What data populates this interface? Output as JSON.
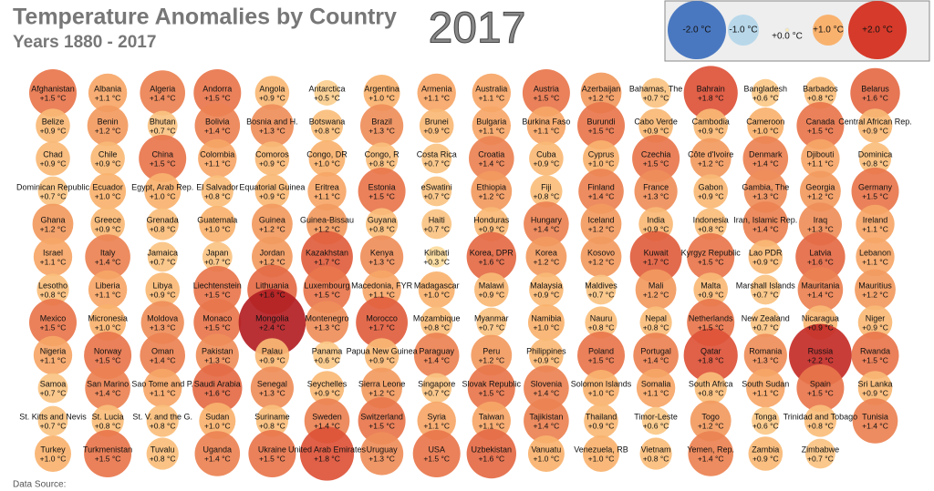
{
  "chart_data": {
    "type": "bubble-grid",
    "title": "Temperature Anomalies by Country",
    "subtitle": "Years 1880 - 2017",
    "year": "2017",
    "source": "Data Source:",
    "legend": [
      {
        "value": -2.0,
        "label": "-2.0 °C"
      },
      {
        "value": -1.0,
        "label": "-1.0 °C"
      },
      {
        "value": 0.0,
        "label": "+0.0 °C"
      },
      {
        "value": 1.0,
        "label": "+1.0 °C"
      },
      {
        "value": 2.0,
        "label": "+2.0 °C"
      }
    ],
    "countries": [
      {
        "name": "Afghanistan",
        "value": 1.5,
        "label": "+1.5 °C"
      },
      {
        "name": "Albania",
        "value": 1.1,
        "label": "+1.1 °C"
      },
      {
        "name": "Algeria",
        "value": 1.4,
        "label": "+1.4 °C"
      },
      {
        "name": "Andorra",
        "value": 1.5,
        "label": "+1.5 °C"
      },
      {
        "name": "Angola",
        "value": 0.9,
        "label": "+0.9 °C"
      },
      {
        "name": "Antarctica",
        "value": 0.5,
        "label": "+0.5 °C"
      },
      {
        "name": "Argentina",
        "value": 1.0,
        "label": "+1.0 °C"
      },
      {
        "name": "Armenia",
        "value": 1.1,
        "label": "+1.1 °C"
      },
      {
        "name": "Australia",
        "value": 1.1,
        "label": "+1.1 °C"
      },
      {
        "name": "Austria",
        "value": 1.5,
        "label": "+1.5 °C"
      },
      {
        "name": "Azerbaijan",
        "value": 1.2,
        "label": "+1.2 °C"
      },
      {
        "name": "Bahamas, The",
        "value": 0.7,
        "label": "+0.7 °C"
      },
      {
        "name": "Bahrain",
        "value": 1.8,
        "label": "+1.8 °C"
      },
      {
        "name": "Bangladesh",
        "value": 0.6,
        "label": "+0.6 °C"
      },
      {
        "name": "Barbados",
        "value": 0.8,
        "label": "+0.8 °C"
      },
      {
        "name": "Belarus",
        "value": 1.6,
        "label": "+1.6 °C"
      },
      {
        "name": "Belize",
        "value": 0.9,
        "label": "+0.9 °C"
      },
      {
        "name": "Benin",
        "value": 1.2,
        "label": "+1.2 °C"
      },
      {
        "name": "Bhutan",
        "value": 0.7,
        "label": "+0.7 °C"
      },
      {
        "name": "Bolivia",
        "value": 1.4,
        "label": "+1.4 °C"
      },
      {
        "name": "Bosnia and H.",
        "value": 1.3,
        "label": "+1.3 °C"
      },
      {
        "name": "Botswana",
        "value": 0.8,
        "label": "+0.8 °C"
      },
      {
        "name": "Brazil",
        "value": 1.3,
        "label": "+1.3 °C"
      },
      {
        "name": "Brunei",
        "value": 0.9,
        "label": "+0.9 °C"
      },
      {
        "name": "Bulgaria",
        "value": 1.1,
        "label": "+1.1 °C"
      },
      {
        "name": "Burkina Faso",
        "value": 1.1,
        "label": "+1.1 °C"
      },
      {
        "name": "Burundi",
        "value": 1.5,
        "label": "+1.5 °C"
      },
      {
        "name": "Cabo Verde",
        "value": 0.9,
        "label": "+0.9 °C"
      },
      {
        "name": "Cambodia",
        "value": 0.9,
        "label": "+0.9 °C"
      },
      {
        "name": "Cameroon",
        "value": 1.0,
        "label": "+1.0 °C"
      },
      {
        "name": "Canada",
        "value": 1.5,
        "label": "+1.5 °C"
      },
      {
        "name": "Central African Rep.",
        "value": 0.9,
        "label": "+0.9 °C"
      },
      {
        "name": "Chad",
        "value": 0.9,
        "label": "+0.9 °C"
      },
      {
        "name": "Chile",
        "value": 0.9,
        "label": "+0.9 °C"
      },
      {
        "name": "China",
        "value": 1.5,
        "label": "+1.5 °C"
      },
      {
        "name": "Colombia",
        "value": 1.1,
        "label": "+1.1 °C"
      },
      {
        "name": "Comoros",
        "value": 0.9,
        "label": "+0.9 °C"
      },
      {
        "name": "Congo, DR",
        "value": 1.0,
        "label": "+1.0 °C"
      },
      {
        "name": "Congo, R",
        "value": 0.8,
        "label": "+0.8 °C"
      },
      {
        "name": "Costa Rica",
        "value": 0.7,
        "label": "+0.7 °C"
      },
      {
        "name": "Croatia",
        "value": 1.4,
        "label": "+1.4 °C"
      },
      {
        "name": "Cuba",
        "value": 0.9,
        "label": "+0.9 °C"
      },
      {
        "name": "Cyprus",
        "value": 1.0,
        "label": "+1.0 °C"
      },
      {
        "name": "Czechia",
        "value": 1.5,
        "label": "+1.5 °C"
      },
      {
        "name": "Côte d'Ivoire",
        "value": 1.2,
        "label": "+1.2 °C"
      },
      {
        "name": "Denmark",
        "value": 1.4,
        "label": "+1.4 °C"
      },
      {
        "name": "Djibouti",
        "value": 1.1,
        "label": "+1.1 °C"
      },
      {
        "name": "Dominica",
        "value": 0.8,
        "label": "+0.8 °C"
      },
      {
        "name": "Dominican Republic",
        "value": 0.7,
        "label": "+0.7 °C"
      },
      {
        "name": "Ecuador",
        "value": 1.0,
        "label": "+1.0 °C"
      },
      {
        "name": "Egypt, Arab Rep.",
        "value": 1.0,
        "label": "+1.0 °C"
      },
      {
        "name": "El Salvador",
        "value": 0.8,
        "label": "+0.8 °C"
      },
      {
        "name": "Equatorial Guinea",
        "value": 0.9,
        "label": "+0.9 °C"
      },
      {
        "name": "Eritrea",
        "value": 1.1,
        "label": "+1.1 °C"
      },
      {
        "name": "Estonia",
        "value": 1.5,
        "label": "+1.5 °C"
      },
      {
        "name": "eSwatini",
        "value": 0.7,
        "label": "+0.7 °C"
      },
      {
        "name": "Ethiopia",
        "value": 1.2,
        "label": "+1.2 °C"
      },
      {
        "name": "Fiji",
        "value": 0.8,
        "label": "+0.8 °C"
      },
      {
        "name": "Finland",
        "value": 1.4,
        "label": "+1.4 °C"
      },
      {
        "name": "France",
        "value": 1.3,
        "label": "+1.3 °C"
      },
      {
        "name": "Gabon",
        "value": 0.9,
        "label": "+0.9 °C"
      },
      {
        "name": "Gambia, The",
        "value": 1.3,
        "label": "+1.3 °C"
      },
      {
        "name": "Georgia",
        "value": 1.2,
        "label": "+1.2 °C"
      },
      {
        "name": "Germany",
        "value": 1.5,
        "label": "+1.5 °C"
      },
      {
        "name": "Ghana",
        "value": 1.2,
        "label": "+1.2 °C"
      },
      {
        "name": "Greece",
        "value": 0.9,
        "label": "+0.9 °C"
      },
      {
        "name": "Grenada",
        "value": 0.8,
        "label": "+0.8 °C"
      },
      {
        "name": "Guatemala",
        "value": 1.0,
        "label": "+1.0 °C"
      },
      {
        "name": "Guinea",
        "value": 1.2,
        "label": "+1.2 °C"
      },
      {
        "name": "Guinea-Bissau",
        "value": 1.2,
        "label": "+1.2 °C"
      },
      {
        "name": "Guyana",
        "value": 0.8,
        "label": "+0.8 °C"
      },
      {
        "name": "Haiti",
        "value": 0.7,
        "label": "+0.7 °C"
      },
      {
        "name": "Honduras",
        "value": 0.9,
        "label": "+0.9 °C"
      },
      {
        "name": "Hungary",
        "value": 1.4,
        "label": "+1.4 °C"
      },
      {
        "name": "Iceland",
        "value": 1.2,
        "label": "+1.2 °C"
      },
      {
        "name": "India",
        "value": 0.9,
        "label": "+0.9 °C"
      },
      {
        "name": "Indonesia",
        "value": 0.8,
        "label": "+0.8 °C"
      },
      {
        "name": "Iran, Islamic Rep.",
        "value": 1.4,
        "label": "+1.4 °C"
      },
      {
        "name": "Iraq",
        "value": 1.3,
        "label": "+1.3 °C"
      },
      {
        "name": "Ireland",
        "value": 1.1,
        "label": "+1.1 °C"
      },
      {
        "name": "Israel",
        "value": 1.1,
        "label": "+1.1 °C"
      },
      {
        "name": "Italy",
        "value": 1.4,
        "label": "+1.4 °C"
      },
      {
        "name": "Jamaica",
        "value": 0.7,
        "label": "+0.7 °C"
      },
      {
        "name": "Japan",
        "value": 0.7,
        "label": "+0.7 °C"
      },
      {
        "name": "Jordan",
        "value": 1.2,
        "label": "+1.2 °C"
      },
      {
        "name": "Kazakhstan",
        "value": 1.7,
        "label": "+1.7 °C"
      },
      {
        "name": "Kenya",
        "value": 1.3,
        "label": "+1.3 °C"
      },
      {
        "name": "Kiribati",
        "value": 0.3,
        "label": "+0.3 °C"
      },
      {
        "name": "Korea, DPR",
        "value": 1.6,
        "label": "+1.6 °C"
      },
      {
        "name": "Korea",
        "value": 1.2,
        "label": "+1.2 °C"
      },
      {
        "name": "Kosovo",
        "value": 1.2,
        "label": "+1.2 °C"
      },
      {
        "name": "Kuwait",
        "value": 1.7,
        "label": "+1.7 °C"
      },
      {
        "name": "Kyrgyz Republic",
        "value": 1.5,
        "label": "+1.5 °C"
      },
      {
        "name": "Lao PDR",
        "value": 0.9,
        "label": "+0.9 °C"
      },
      {
        "name": "Latvia",
        "value": 1.6,
        "label": "+1.6 °C"
      },
      {
        "name": "Lebanon",
        "value": 1.1,
        "label": "+1.1 °C"
      },
      {
        "name": "Lesotho",
        "value": 0.8,
        "label": "+0.8 °C"
      },
      {
        "name": "Liberia",
        "value": 1.1,
        "label": "+1.1 °C"
      },
      {
        "name": "Libya",
        "value": 0.9,
        "label": "+0.9 °C"
      },
      {
        "name": "Liechtenstein",
        "value": 1.5,
        "label": "+1.5 °C"
      },
      {
        "name": "Lithuania",
        "value": 1.6,
        "label": "+1.6 °C"
      },
      {
        "name": "Luxembourg",
        "value": 1.5,
        "label": "+1.5 °C"
      },
      {
        "name": "Macedonia, FYR",
        "value": 1.1,
        "label": "+1.1 °C"
      },
      {
        "name": "Madagascar",
        "value": 1.0,
        "label": "+1.0 °C"
      },
      {
        "name": "Malawi",
        "value": 0.9,
        "label": "+0.9 °C"
      },
      {
        "name": "Malaysia",
        "value": 0.9,
        "label": "+0.9 °C"
      },
      {
        "name": "Maldives",
        "value": 0.7,
        "label": "+0.7 °C"
      },
      {
        "name": "Mali",
        "value": 1.2,
        "label": "+1.2 °C"
      },
      {
        "name": "Malta",
        "value": 0.9,
        "label": "+0.9 °C"
      },
      {
        "name": "Marshall Islands",
        "value": 0.7,
        "label": "+0.7 °C"
      },
      {
        "name": "Mauritania",
        "value": 1.4,
        "label": "+1.4 °C"
      },
      {
        "name": "Mauritius",
        "value": 1.2,
        "label": "+1.2 °C"
      },
      {
        "name": "Mexico",
        "value": 1.5,
        "label": "+1.5 °C"
      },
      {
        "name": "Micronesia",
        "value": 1.0,
        "label": "+1.0 °C"
      },
      {
        "name": "Moldova",
        "value": 1.3,
        "label": "+1.3 °C"
      },
      {
        "name": "Monaco",
        "value": 1.5,
        "label": "+1.5 °C"
      },
      {
        "name": "Mongolia",
        "value": 2.4,
        "label": "+2.4 °C"
      },
      {
        "name": "Montenegro",
        "value": 1.3,
        "label": "+1.3 °C"
      },
      {
        "name": "Morocco",
        "value": 1.7,
        "label": "+1.7 °C"
      },
      {
        "name": "Mozambique",
        "value": 0.8,
        "label": "+0.8 °C"
      },
      {
        "name": "Myanmar",
        "value": 0.7,
        "label": "+0.7 °C"
      },
      {
        "name": "Namibia",
        "value": 1.0,
        "label": "+1.0 °C"
      },
      {
        "name": "Nauru",
        "value": 0.8,
        "label": "+0.8 °C"
      },
      {
        "name": "Nepal",
        "value": 0.8,
        "label": "+0.8 °C"
      },
      {
        "name": "Netherlands",
        "value": 1.5,
        "label": "+1.5 °C"
      },
      {
        "name": "New Zealand",
        "value": 0.7,
        "label": "+0.7 °C"
      },
      {
        "name": "Nicaragua",
        "value": 0.9,
        "label": "+0.9 °C"
      },
      {
        "name": "Niger",
        "value": 0.9,
        "label": "+0.9 °C"
      },
      {
        "name": "Nigeria",
        "value": 1.1,
        "label": "+1.1 °C"
      },
      {
        "name": "Norway",
        "value": 1.5,
        "label": "+1.5 °C"
      },
      {
        "name": "Oman",
        "value": 1.4,
        "label": "+1.4 °C"
      },
      {
        "name": "Pakistan",
        "value": 1.3,
        "label": "+1.3 °C"
      },
      {
        "name": "Palau",
        "value": 0.9,
        "label": "+0.9 °C"
      },
      {
        "name": "Panama",
        "value": 0.6,
        "label": "+0.6 °C"
      },
      {
        "name": "Papua New Guinea",
        "value": 0.9,
        "label": "+0.9 °C"
      },
      {
        "name": "Paraguay",
        "value": 1.4,
        "label": "+1.4 °C"
      },
      {
        "name": "Peru",
        "value": 1.2,
        "label": "+1.2 °C"
      },
      {
        "name": "Philippines",
        "value": 0.9,
        "label": "+0.9 °C"
      },
      {
        "name": "Poland",
        "value": 1.5,
        "label": "+1.5 °C"
      },
      {
        "name": "Portugal",
        "value": 1.4,
        "label": "+1.4 °C"
      },
      {
        "name": "Qatar",
        "value": 1.8,
        "label": "+1.8 °C"
      },
      {
        "name": "Romania",
        "value": 1.3,
        "label": "+1.3 °C"
      },
      {
        "name": "Russia",
        "value": 2.2,
        "label": "+2.2 °C"
      },
      {
        "name": "Rwanda",
        "value": 1.5,
        "label": "+1.5 °C"
      },
      {
        "name": "Samoa",
        "value": 0.7,
        "label": "+0.7 °C"
      },
      {
        "name": "San Marino",
        "value": 1.4,
        "label": "+1.4 °C"
      },
      {
        "name": "Sao Tome and P.",
        "value": 1.1,
        "label": "+1.1 °C"
      },
      {
        "name": "Saudi Arabia",
        "value": 1.6,
        "label": "+1.6 °C"
      },
      {
        "name": "Senegal",
        "value": 1.3,
        "label": "+1.3 °C"
      },
      {
        "name": "Seychelles",
        "value": 0.9,
        "label": "+0.9 °C"
      },
      {
        "name": "Sierra Leone",
        "value": 1.2,
        "label": "+1.2 °C"
      },
      {
        "name": "Singapore",
        "value": 0.7,
        "label": "+0.7 °C"
      },
      {
        "name": "Slovak Republic",
        "value": 1.5,
        "label": "+1.5 °C"
      },
      {
        "name": "Slovenia",
        "value": 1.4,
        "label": "+1.4 °C"
      },
      {
        "name": "Solomon Islands",
        "value": 1.0,
        "label": "+1.0 °C"
      },
      {
        "name": "Somalia",
        "value": 1.1,
        "label": "+1.1 °C"
      },
      {
        "name": "South Africa",
        "value": 0.8,
        "label": "+0.8 °C"
      },
      {
        "name": "South Sudan",
        "value": 1.1,
        "label": "+1.1 °C"
      },
      {
        "name": "Spain",
        "value": 1.5,
        "label": "+1.5 °C"
      },
      {
        "name": "Sri Lanka",
        "value": 0.9,
        "label": "+0.9 °C"
      },
      {
        "name": "St. Kitts and Nevis",
        "value": 0.7,
        "label": "+0.7 °C"
      },
      {
        "name": "St. Lucia",
        "value": 0.8,
        "label": "+0.8 °C"
      },
      {
        "name": "St. V. and the G.",
        "value": 0.8,
        "label": "+0.8 °C"
      },
      {
        "name": "Sudan",
        "value": 1.0,
        "label": "+1.0 °C"
      },
      {
        "name": "Suriname",
        "value": 0.8,
        "label": "+0.8 °C"
      },
      {
        "name": "Sweden",
        "value": 1.4,
        "label": "+1.4 °C"
      },
      {
        "name": "Switzerland",
        "value": 1.5,
        "label": "+1.5 °C"
      },
      {
        "name": "Syria",
        "value": 1.1,
        "label": "+1.1 °C"
      },
      {
        "name": "Taiwan",
        "value": 1.1,
        "label": "+1.1 °C"
      },
      {
        "name": "Tajikistan",
        "value": 1.4,
        "label": "+1.4 °C"
      },
      {
        "name": "Thailand",
        "value": 0.9,
        "label": "+0.9 °C"
      },
      {
        "name": "Timor-Leste",
        "value": 0.6,
        "label": "+0.6 °C"
      },
      {
        "name": "Togo",
        "value": 1.2,
        "label": "+1.2 °C"
      },
      {
        "name": "Tonga",
        "value": 0.6,
        "label": "+0.6 °C"
      },
      {
        "name": "Trinidad and Tobago",
        "value": 0.8,
        "label": "+0.8 °C"
      },
      {
        "name": "Tunisia",
        "value": 1.4,
        "label": "+1.4 °C"
      },
      {
        "name": "Turkey",
        "value": 1.0,
        "label": "+1.0 °C"
      },
      {
        "name": "Turkmenistan",
        "value": 1.5,
        "label": "+1.5 °C"
      },
      {
        "name": "Tuvalu",
        "value": 0.8,
        "label": "+0.8 °C"
      },
      {
        "name": "Uganda",
        "value": 1.4,
        "label": "+1.4 °C"
      },
      {
        "name": "Ukraine",
        "value": 1.5,
        "label": "+1.5 °C"
      },
      {
        "name": "United Arab Emirates",
        "value": 1.8,
        "label": "+1.8 °C"
      },
      {
        "name": "Uruguay",
        "value": 1.3,
        "label": "+1.3 °C"
      },
      {
        "name": "USA",
        "value": 1.5,
        "label": "+1.5 °C"
      },
      {
        "name": "Uzbekistan",
        "value": 1.6,
        "label": "+1.6 °C"
      },
      {
        "name": "Vanuatu",
        "value": 1.0,
        "label": "+1.0 °C"
      },
      {
        "name": "Venezuela, RB",
        "value": 1.0,
        "label": "+1.0 °C"
      },
      {
        "name": "Vietnam",
        "value": 0.8,
        "label": "+0.8 °C"
      },
      {
        "name": "Yemen, Rep.",
        "value": 1.4,
        "label": "+1.4 °C"
      },
      {
        "name": "Zambia",
        "value": 0.9,
        "label": "+0.9 °C"
      },
      {
        "name": "Zimbabwe",
        "value": 0.7,
        "label": "+0.7 °C"
      }
    ]
  }
}
